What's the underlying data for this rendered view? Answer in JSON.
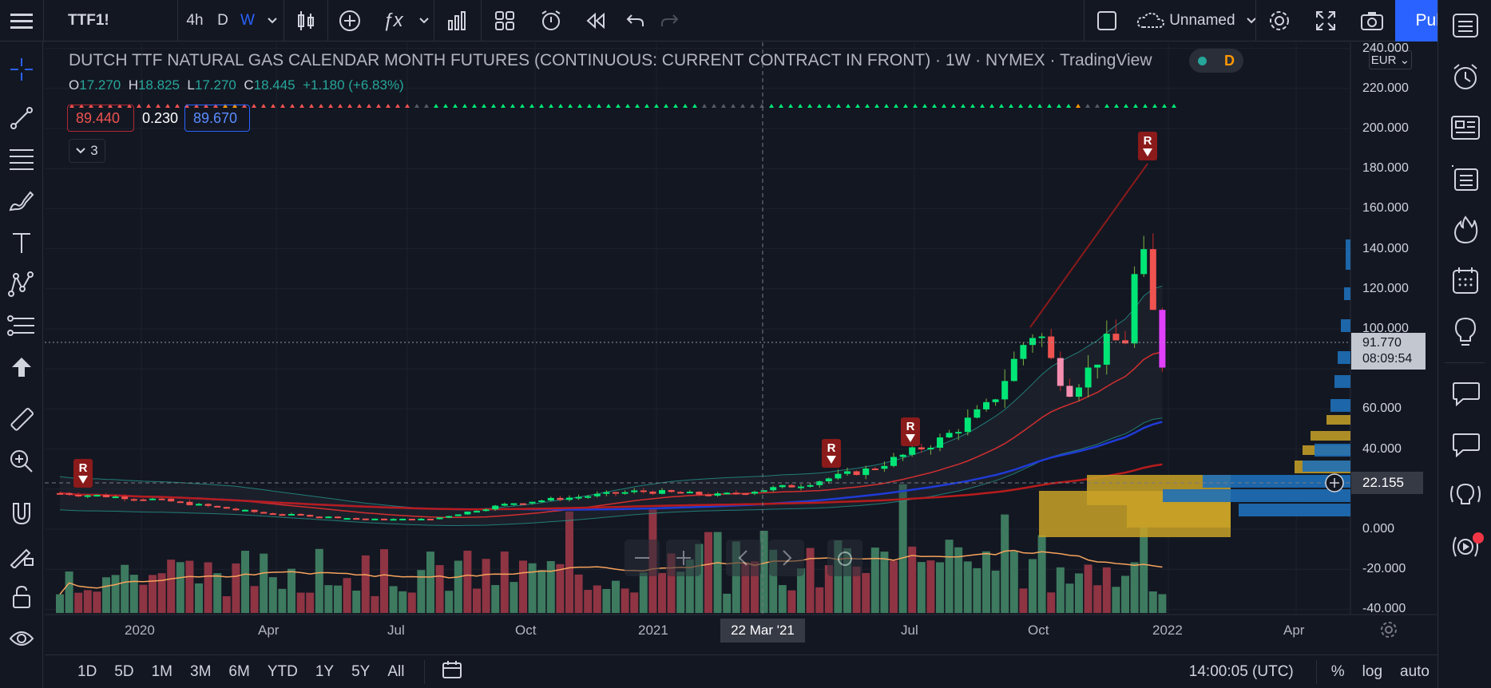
{
  "topbar": {
    "symbol": "TTF1!",
    "interval_4h": "4h",
    "interval_d": "D",
    "interval_w": "W",
    "layout_name": "Unnamed",
    "publish_label": "Publish",
    "accent": "#2962ff"
  },
  "legend": {
    "title": "DUTCH TTF NATURAL GAS CALENDAR MONTH FUTURES (CONTINUOUS: CURRENT CONTRACT IN FRONT) · 1W · NYMEX · TradingView",
    "badge": "D",
    "open_k": "O",
    "open_v": "17.270",
    "high_k": "H",
    "high_v": "18.825",
    "low_k": "L",
    "low_v": "17.270",
    "close_k": "C",
    "close_v": "18.445",
    "change": "+1.180 (+6.83%)",
    "ind_red": "89.440",
    "ind_white": "0.230",
    "ind_blue": "89.670",
    "collapse_count": "3"
  },
  "price_axis": {
    "currency": "EUR",
    "labels": [
      "240.000",
      "220.000",
      "200.000",
      "180.000",
      "160.000",
      "140.000",
      "120.000",
      "100.000",
      "60.000",
      "40.000",
      "0.000",
      "-20.000",
      "-40.000"
    ],
    "last_price": "91.770",
    "countdown": "08:09:54",
    "crosshair_price": "22.155"
  },
  "time_axis": {
    "labels": [
      "2020",
      "Apr",
      "Jul",
      "Oct",
      "2021",
      "Jul",
      "Oct",
      "2022",
      "Apr"
    ],
    "crosshair_date": "22 Mar '21"
  },
  "bottombar": {
    "ranges": [
      "1D",
      "5D",
      "1M",
      "3M",
      "6M",
      "YTD",
      "1Y",
      "5Y",
      "All"
    ],
    "clock": "14:00:05 (UTC)",
    "pct": "%",
    "log": "log",
    "auto": "auto"
  },
  "signals": {
    "marker": "R"
  },
  "chart_data": {
    "type": "candlestick",
    "interval": "1W",
    "exchange": "NYMEX",
    "ylim": [
      -40,
      240
    ],
    "series": [
      {
        "name": "close_approx",
        "x": [
          "2019-11",
          "2020-01",
          "2020-04",
          "2020-07",
          "2020-10",
          "2021-01",
          "2021-03",
          "2021-05",
          "2021-07",
          "2021-09",
          "2021-10",
          "2021-11",
          "2021-12",
          "2022-01"
        ],
        "values": [
          18,
          15,
          8,
          5,
          12,
          19,
          18,
          24,
          35,
          55,
          90,
          75,
          135,
          91.77
        ]
      }
    ]
  }
}
